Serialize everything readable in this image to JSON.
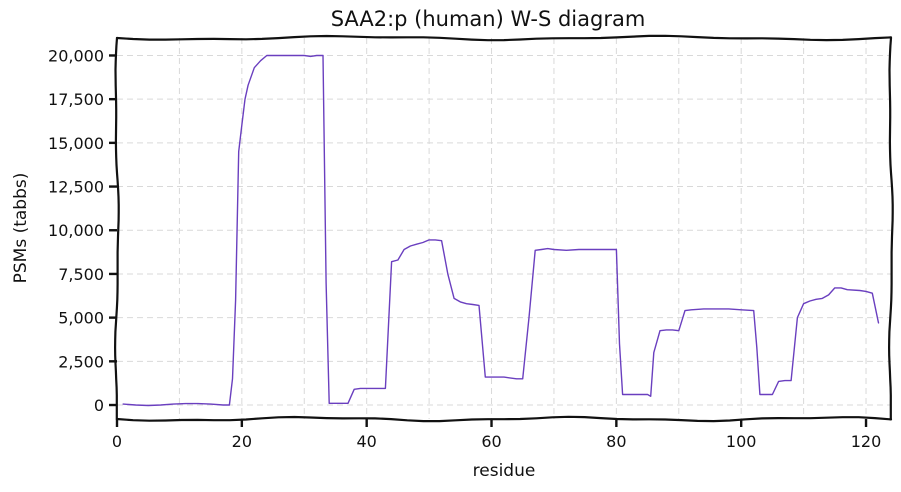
{
  "chart_data": {
    "type": "line",
    "title": "SAA2:p (human) W-S diagram",
    "xlabel": "residue",
    "ylabel": "PSMs (tabbs)",
    "xlim": [
      0,
      124
    ],
    "ylim": [
      -800,
      21000
    ],
    "x_ticks": [
      0,
      20,
      40,
      60,
      80,
      100,
      120
    ],
    "x_tick_labels": [
      "0",
      "20",
      "40",
      "60",
      "80",
      "100",
      "120"
    ],
    "y_ticks": [
      0,
      2500,
      5000,
      7500,
      10000,
      12500,
      15000,
      17500,
      20000
    ],
    "y_tick_labels": [
      "0",
      "2,500",
      "5,000",
      "7,500",
      "10,000",
      "12,500",
      "15,000",
      "17,500",
      "20,000"
    ],
    "grid": true,
    "line_color": "#6a3fbf",
    "series": [
      {
        "x": [
          1,
          3,
          5,
          7,
          9,
          11,
          13,
          15,
          17,
          18,
          18.5,
          19,
          19.5,
          20,
          20.5,
          21,
          22,
          23,
          24,
          25,
          26,
          28,
          30,
          31,
          32,
          33,
          33.5,
          34,
          35,
          36,
          37,
          38,
          39,
          40,
          41,
          43,
          44,
          45,
          46,
          47,
          48,
          49,
          50,
          51,
          52,
          53,
          54,
          55,
          56,
          57,
          58,
          59,
          60,
          62,
          64,
          65,
          66,
          67,
          68,
          69,
          70,
          72,
          74,
          76,
          78,
          80,
          80.5,
          81,
          82,
          84,
          85,
          85.5,
          86,
          87,
          88,
          89,
          90,
          91,
          92,
          94,
          96,
          98,
          100,
          102,
          102.5,
          103,
          104,
          105,
          106,
          107,
          108,
          109,
          110,
          111,
          112,
          113,
          114,
          115,
          116,
          117,
          119,
          120,
          121,
          122
        ],
        "y": [
          50,
          0,
          -30,
          0,
          50,
          80,
          80,
          50,
          0,
          0,
          1500,
          6000,
          14500,
          16000,
          17500,
          18300,
          19300,
          19700,
          20000,
          20000,
          20000,
          20000,
          20000,
          19950,
          20000,
          20000,
          7000,
          100,
          100,
          100,
          100,
          900,
          950,
          950,
          950,
          950,
          8200,
          8300,
          8900,
          9100,
          9200,
          9300,
          9450,
          9450,
          9400,
          7500,
          6100,
          5900,
          5800,
          5750,
          5700,
          1600,
          1600,
          1600,
          1500,
          1500,
          5000,
          8850,
          8900,
          8950,
          8900,
          8850,
          8900,
          8900,
          8900,
          8900,
          3500,
          600,
          600,
          600,
          600,
          500,
          3000,
          4250,
          4300,
          4300,
          4250,
          5400,
          5450,
          5500,
          5500,
          5500,
          5450,
          5400,
          3300,
          600,
          600,
          600,
          1350,
          1400,
          1400,
          5000,
          5800,
          5950,
          6050,
          6100,
          6300,
          6700,
          6700,
          6600,
          6550,
          6500,
          6400,
          4700
        ]
      }
    ]
  }
}
